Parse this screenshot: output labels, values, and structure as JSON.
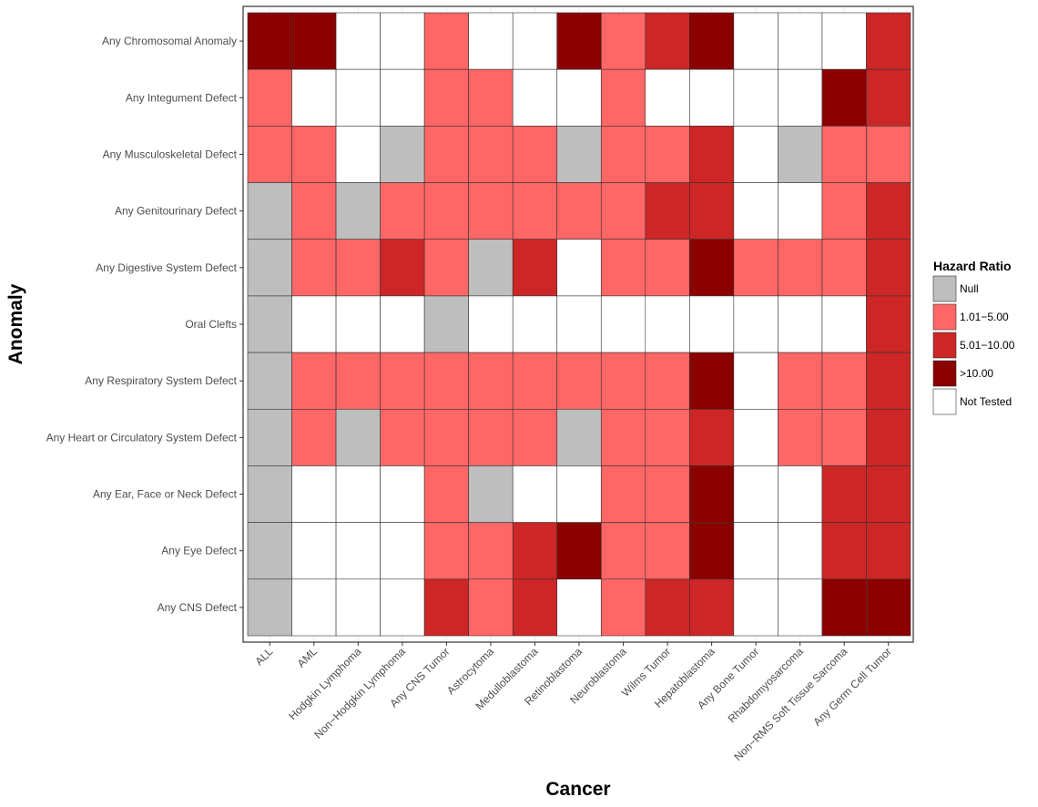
{
  "chart_data": {
    "type": "heatmap",
    "title": "",
    "xlabel": "Cancer",
    "ylabel": "Anomaly",
    "grid": true,
    "legend_position": "right",
    "legend": {
      "title": "Hazard Ratio",
      "entries": [
        {
          "key": "N",
          "label": "Null",
          "color": "#bebebe"
        },
        {
          "key": "L",
          "label": "1.01−5.00",
          "color": "#ff6666"
        },
        {
          "key": "M",
          "label": "5.01−10.00",
          "color": "#cc2626"
        },
        {
          "key": "H",
          "label": ">10.00",
          "color": "#8b0000"
        },
        {
          "key": "W",
          "label": "Not Tested",
          "color": "#ffffff"
        }
      ]
    },
    "x_categories": [
      "ALL",
      "AML",
      "Hodgkin Lymphoma",
      "Non−Hodgkin Lymphoma",
      "Any CNS Tumor",
      "Astrocytoma",
      "Medulloblastoma",
      "Retinoblastoma",
      "Neuroblastoma",
      "Wilms Tumor",
      "Hepatoblastoma",
      "Any Bone Tumor",
      "Rhabdomyosarcoma",
      "Non−RMS Soft Tissue Sarcoma",
      "Any Germ Cell Tumor"
    ],
    "y_categories": [
      "Any Chromosomal Anomaly",
      "Any Integument Defect",
      "Any Musculoskeletal Defect",
      "Any Genitourinary Defect",
      "Any Digestive System Defect",
      "Oral Clefts",
      "Any Respiratory System Defect",
      "Any Heart or Circulatory System Defect",
      "Any Ear, Face or Neck Defect",
      "Any Eye Defect",
      "Any CNS Defect"
    ],
    "values": [
      [
        "H",
        "H",
        "W",
        "W",
        "L",
        "W",
        "W",
        "H",
        "L",
        "M",
        "H",
        "W",
        "W",
        "W",
        "M"
      ],
      [
        "L",
        "W",
        "W",
        "W",
        "L",
        "L",
        "W",
        "W",
        "L",
        "W",
        "W",
        "W",
        "W",
        "H",
        "M"
      ],
      [
        "L",
        "L",
        "W",
        "N",
        "L",
        "L",
        "L",
        "N",
        "L",
        "L",
        "M",
        "W",
        "N",
        "L",
        "L"
      ],
      [
        "N",
        "L",
        "N",
        "L",
        "L",
        "L",
        "L",
        "L",
        "L",
        "M",
        "M",
        "W",
        "W",
        "L",
        "M"
      ],
      [
        "N",
        "L",
        "L",
        "M",
        "L",
        "N",
        "M",
        "W",
        "L",
        "L",
        "H",
        "L",
        "L",
        "L",
        "M"
      ],
      [
        "N",
        "W",
        "W",
        "W",
        "N",
        "W",
        "W",
        "W",
        "W",
        "W",
        "W",
        "W",
        "W",
        "W",
        "M"
      ],
      [
        "N",
        "L",
        "L",
        "L",
        "L",
        "L",
        "L",
        "L",
        "L",
        "L",
        "H",
        "W",
        "L",
        "L",
        "M"
      ],
      [
        "N",
        "L",
        "N",
        "L",
        "L",
        "L",
        "L",
        "N",
        "L",
        "L",
        "M",
        "W",
        "L",
        "L",
        "M"
      ],
      [
        "N",
        "W",
        "W",
        "W",
        "L",
        "N",
        "W",
        "W",
        "L",
        "L",
        "H",
        "W",
        "W",
        "M",
        "M"
      ],
      [
        "N",
        "W",
        "W",
        "W",
        "L",
        "L",
        "M",
        "H",
        "L",
        "L",
        "H",
        "W",
        "W",
        "M",
        "M"
      ],
      [
        "N",
        "W",
        "W",
        "W",
        "M",
        "L",
        "M",
        "W",
        "L",
        "M",
        "M",
        "W",
        "W",
        "H",
        "H"
      ]
    ]
  }
}
